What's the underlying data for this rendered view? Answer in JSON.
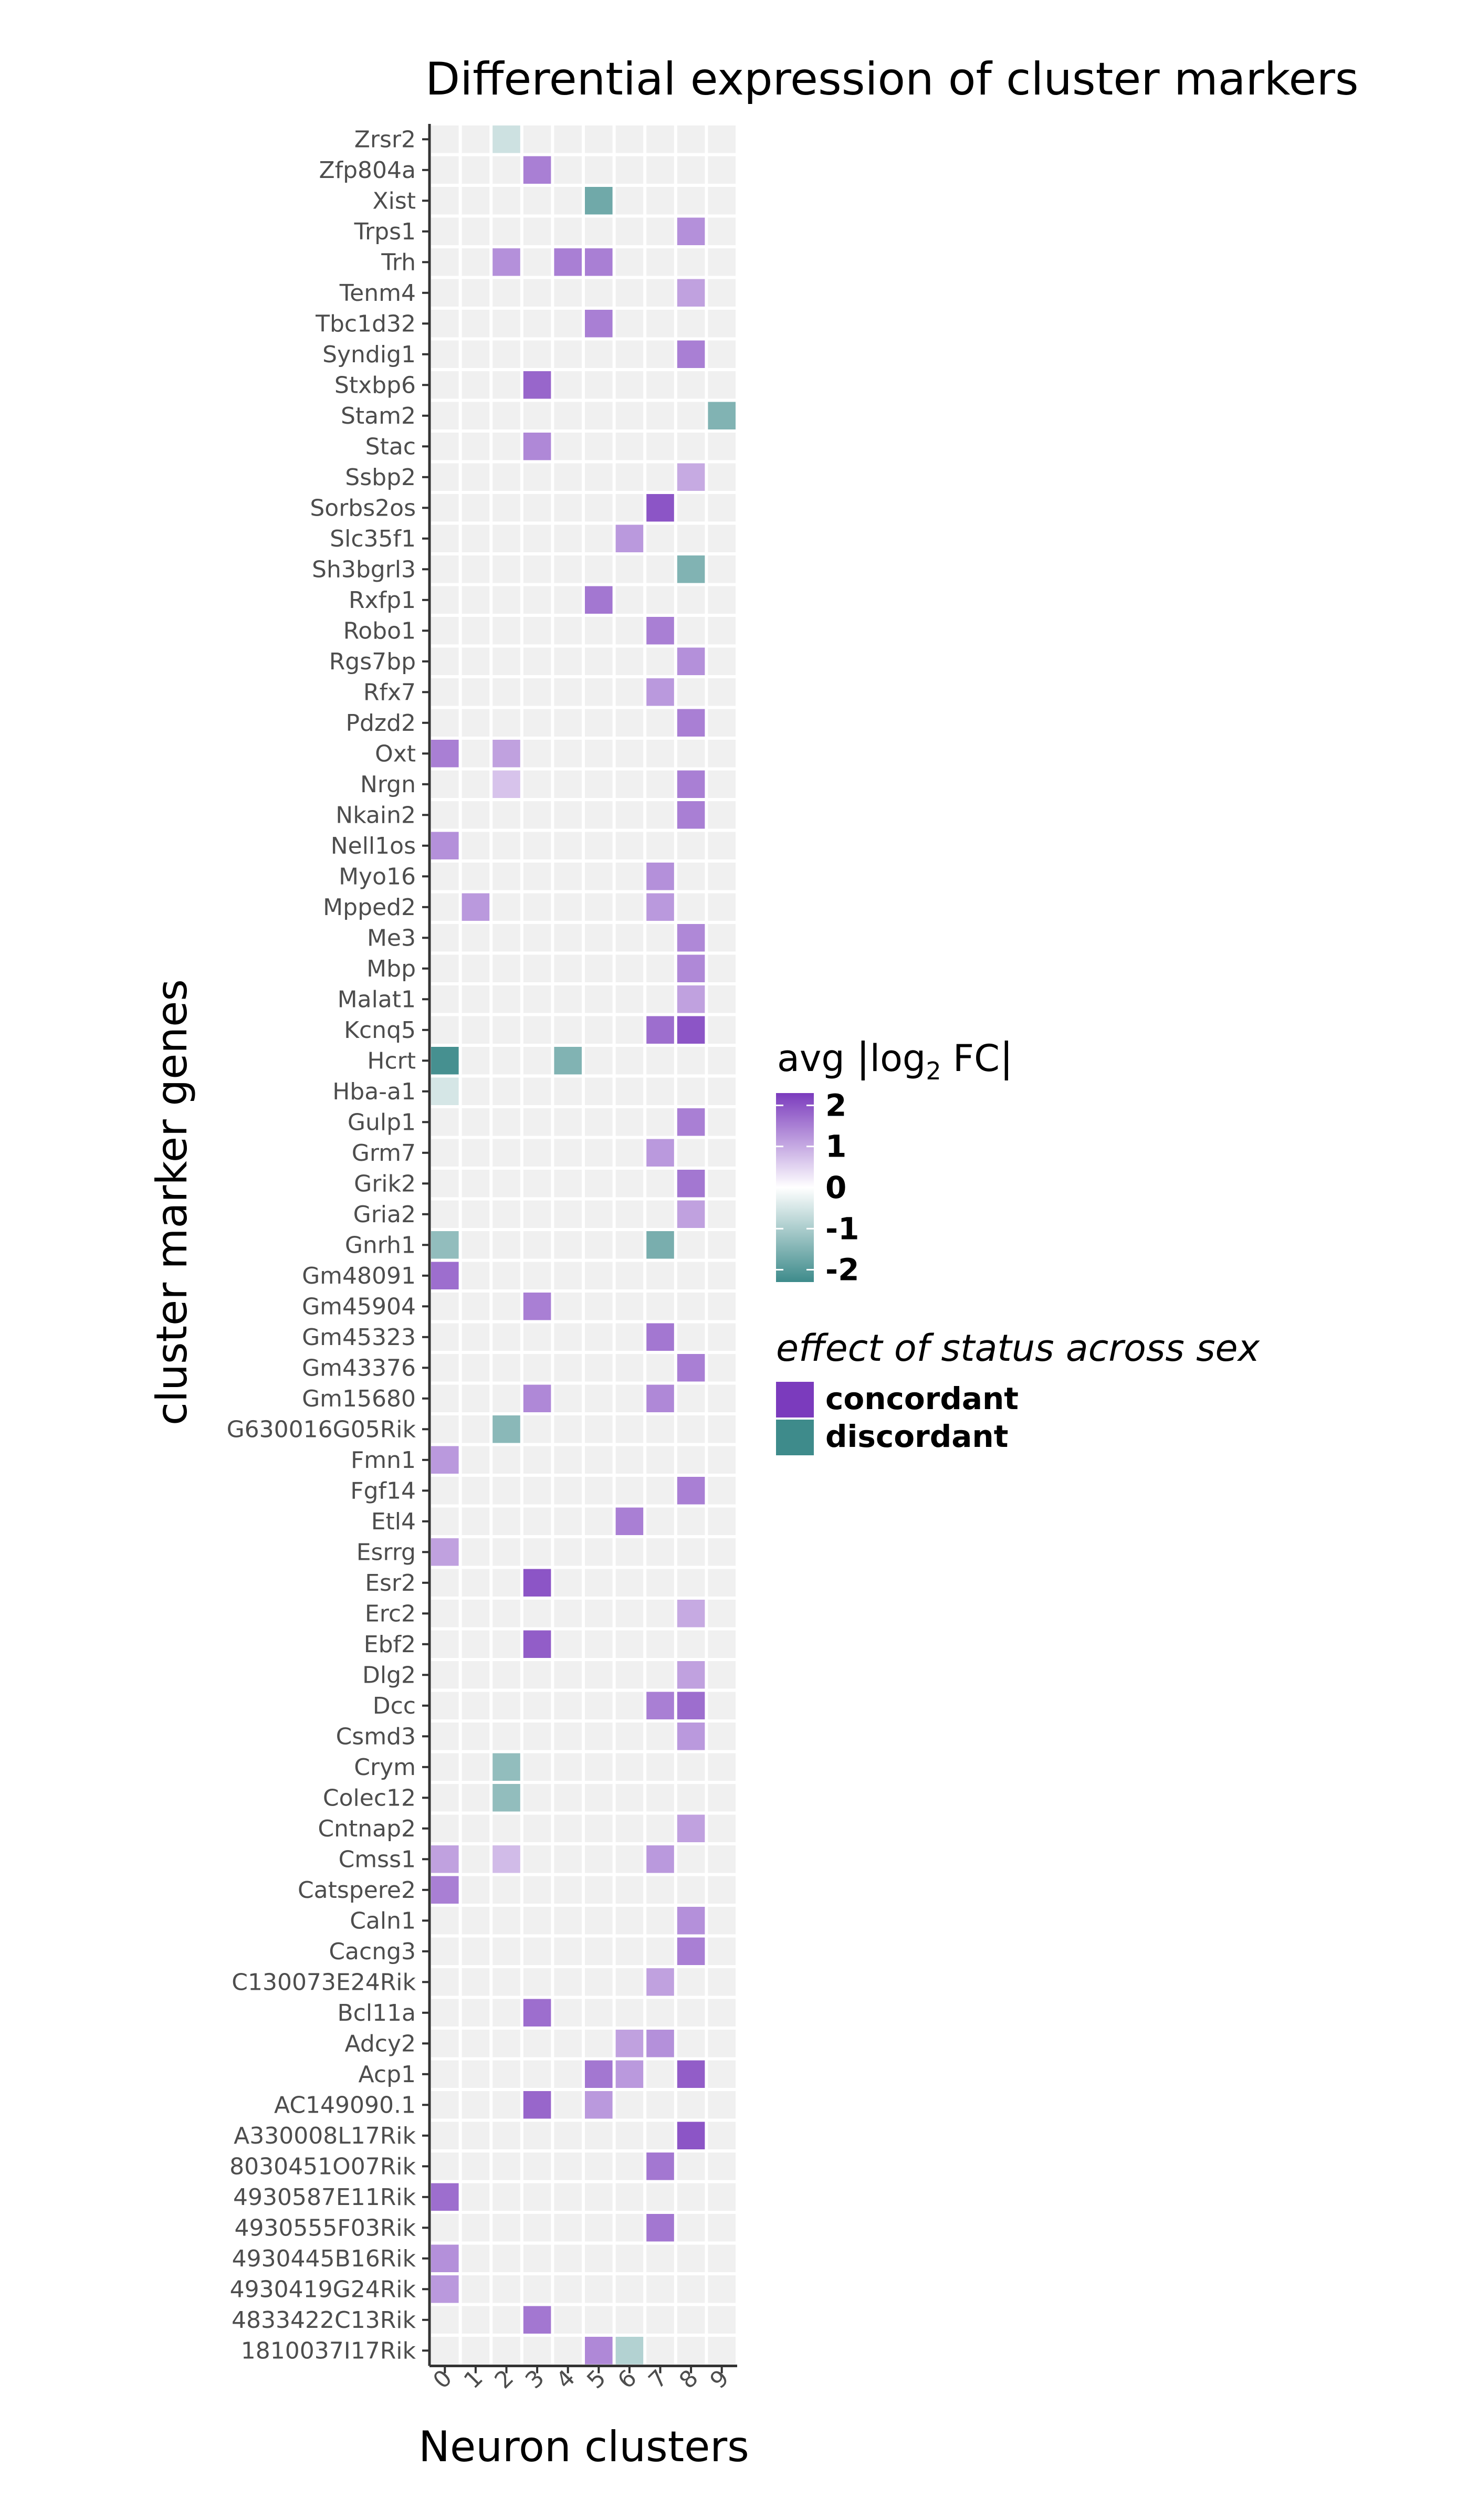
{
  "chart_data": {
    "type": "heatmap",
    "title": "Differential expression of cluster markers",
    "xlabel": "Neuron clusters",
    "ylabel": "cluster marker genes",
    "x_categories": [
      "0",
      "1",
      "2",
      "3",
      "4",
      "5",
      "6",
      "7",
      "8",
      "9"
    ],
    "genes": [
      "Zrsr2",
      "Zfp804a",
      "Xist",
      "Trps1",
      "Trh",
      "Tenm4",
      "Tbc1d32",
      "Syndig1",
      "Stxbp6",
      "Stam2",
      "Stac",
      "Ssbp2",
      "Sorbs2os",
      "Slc35f1",
      "Sh3bgrl3",
      "Rxfp1",
      "Robo1",
      "Rgs7bp",
      "Rfx7",
      "Pdzd2",
      "Oxt",
      "Nrgn",
      "Nkain2",
      "Nell1os",
      "Myo16",
      "Mpped2",
      "Me3",
      "Mbp",
      "Malat1",
      "Kcnq5",
      "Hcrt",
      "Hba-a1",
      "Gulp1",
      "Grm7",
      "Grik2",
      "Gria2",
      "Gnrh1",
      "Gm48091",
      "Gm45904",
      "Gm45323",
      "Gm43376",
      "Gm15680",
      "G630016G05Rik",
      "Fmn1",
      "Fgf14",
      "Etl4",
      "Esrrg",
      "Esr2",
      "Erc2",
      "Ebf2",
      "Dlg2",
      "Dcc",
      "Csmd3",
      "Crym",
      "Colec12",
      "Cntnap2",
      "Cmss1",
      "Catspere2",
      "Caln1",
      "Cacng3",
      "C130073E24Rik",
      "Bcl11a",
      "Adcy2",
      "Acp1",
      "AC149090.1",
      "A330008L17Rik",
      "8030451O07Rik",
      "4930587E11Rik",
      "4930555F03Rik",
      "4930445B16Rik",
      "4930419G24Rik",
      "4833422C13Rik",
      "1810037I17Rik"
    ],
    "cells": [
      {
        "gene": "Zrsr2",
        "cluster": "2",
        "value": -0.6
      },
      {
        "gene": "Zfp804a",
        "cluster": "3",
        "value": 1.5
      },
      {
        "gene": "Xist",
        "cluster": "5",
        "value": -1.7
      },
      {
        "gene": "Trps1",
        "cluster": "8",
        "value": 1.3
      },
      {
        "gene": "Trh",
        "cluster": "2",
        "value": 1.3
      },
      {
        "gene": "Trh",
        "cluster": "4",
        "value": 1.5
      },
      {
        "gene": "Trh",
        "cluster": "5",
        "value": 1.5
      },
      {
        "gene": "Tenm4",
        "cluster": "8",
        "value": 1.1
      },
      {
        "gene": "Tbc1d32",
        "cluster": "5",
        "value": 1.5
      },
      {
        "gene": "Syndig1",
        "cluster": "8",
        "value": 1.5
      },
      {
        "gene": "Stxbp6",
        "cluster": "3",
        "value": 1.8
      },
      {
        "gene": "Stam2",
        "cluster": "9",
        "value": -1.5
      },
      {
        "gene": "Stac",
        "cluster": "3",
        "value": 1.4
      },
      {
        "gene": "Ssbp2",
        "cluster": "8",
        "value": 1.0
      },
      {
        "gene": "Sorbs2os",
        "cluster": "7",
        "value": 2.0
      },
      {
        "gene": "Slc35f1",
        "cluster": "6",
        "value": 1.2
      },
      {
        "gene": "Sh3bgrl3",
        "cluster": "8",
        "value": -1.5
      },
      {
        "gene": "Rxfp1",
        "cluster": "5",
        "value": 1.6
      },
      {
        "gene": "Robo1",
        "cluster": "7",
        "value": 1.5
      },
      {
        "gene": "Rgs7bp",
        "cluster": "8",
        "value": 1.3
      },
      {
        "gene": "Rfx7",
        "cluster": "7",
        "value": 1.2
      },
      {
        "gene": "Pdzd2",
        "cluster": "8",
        "value": 1.5
      },
      {
        "gene": "Oxt",
        "cluster": "0",
        "value": 1.5
      },
      {
        "gene": "Oxt",
        "cluster": "2",
        "value": 1.1
      },
      {
        "gene": "Nrgn",
        "cluster": "2",
        "value": 0.7
      },
      {
        "gene": "Nrgn",
        "cluster": "8",
        "value": 1.5
      },
      {
        "gene": "Nkain2",
        "cluster": "8",
        "value": 1.5
      },
      {
        "gene": "Nell1os",
        "cluster": "0",
        "value": 1.3
      },
      {
        "gene": "Myo16",
        "cluster": "7",
        "value": 1.3
      },
      {
        "gene": "Mpped2",
        "cluster": "1",
        "value": 1.2
      },
      {
        "gene": "Mpped2",
        "cluster": "7",
        "value": 1.2
      },
      {
        "gene": "Me3",
        "cluster": "8",
        "value": 1.4
      },
      {
        "gene": "Mbp",
        "cluster": "8",
        "value": 1.4
      },
      {
        "gene": "Malat1",
        "cluster": "8",
        "value": 1.1
      },
      {
        "gene": "Kcnq5",
        "cluster": "7",
        "value": 1.7
      },
      {
        "gene": "Kcnq5",
        "cluster": "8",
        "value": 2.0
      },
      {
        "gene": "Hcrt",
        "cluster": "0",
        "value": -2.2
      },
      {
        "gene": "Hcrt",
        "cluster": "4",
        "value": -1.5
      },
      {
        "gene": "Hba-a1",
        "cluster": "0",
        "value": -0.5
      },
      {
        "gene": "Gulp1",
        "cluster": "8",
        "value": 1.5
      },
      {
        "gene": "Grm7",
        "cluster": "7",
        "value": 1.2
      },
      {
        "gene": "Grik2",
        "cluster": "8",
        "value": 1.6
      },
      {
        "gene": "Gria2",
        "cluster": "8",
        "value": 1.1
      },
      {
        "gene": "Gnrh1",
        "cluster": "0",
        "value": -1.3
      },
      {
        "gene": "Gnrh1",
        "cluster": "7",
        "value": -1.6
      },
      {
        "gene": "Gm48091",
        "cluster": "0",
        "value": 1.7
      },
      {
        "gene": "Gm45904",
        "cluster": "3",
        "value": 1.5
      },
      {
        "gene": "Gm45323",
        "cluster": "7",
        "value": 1.6
      },
      {
        "gene": "Gm43376",
        "cluster": "8",
        "value": 1.5
      },
      {
        "gene": "Gm15680",
        "cluster": "3",
        "value": 1.4
      },
      {
        "gene": "Gm15680",
        "cluster": "7",
        "value": 1.4
      },
      {
        "gene": "G630016G05Rik",
        "cluster": "2",
        "value": -1.4
      },
      {
        "gene": "Fmn1",
        "cluster": "0",
        "value": 1.2
      },
      {
        "gene": "Fgf14",
        "cluster": "8",
        "value": 1.5
      },
      {
        "gene": "Etl4",
        "cluster": "6",
        "value": 1.5
      },
      {
        "gene": "Esrrg",
        "cluster": "0",
        "value": 1.1
      },
      {
        "gene": "Esr2",
        "cluster": "3",
        "value": 2.0
      },
      {
        "gene": "Erc2",
        "cluster": "8",
        "value": 1.0
      },
      {
        "gene": "Ebf2",
        "cluster": "3",
        "value": 1.9
      },
      {
        "gene": "Dlg2",
        "cluster": "8",
        "value": 1.1
      },
      {
        "gene": "Dcc",
        "cluster": "7",
        "value": 1.5
      },
      {
        "gene": "Dcc",
        "cluster": "8",
        "value": 1.7
      },
      {
        "gene": "Csmd3",
        "cluster": "8",
        "value": 1.2
      },
      {
        "gene": "Crym",
        "cluster": "2",
        "value": -1.3
      },
      {
        "gene": "Colec12",
        "cluster": "2",
        "value": -1.3
      },
      {
        "gene": "Cntnap2",
        "cluster": "8",
        "value": 1.1
      },
      {
        "gene": "Cmss1",
        "cluster": "0",
        "value": 1.1
      },
      {
        "gene": "Cmss1",
        "cluster": "2",
        "value": 0.8
      },
      {
        "gene": "Cmss1",
        "cluster": "7",
        "value": 1.2
      },
      {
        "gene": "Catspere2",
        "cluster": "0",
        "value": 1.5
      },
      {
        "gene": "Caln1",
        "cluster": "8",
        "value": 1.3
      },
      {
        "gene": "Cacng3",
        "cluster": "8",
        "value": 1.5
      },
      {
        "gene": "C130073E24Rik",
        "cluster": "7",
        "value": 1.1
      },
      {
        "gene": "Bcl11a",
        "cluster": "3",
        "value": 1.7
      },
      {
        "gene": "Adcy2",
        "cluster": "6",
        "value": 1.1
      },
      {
        "gene": "Adcy2",
        "cluster": "7",
        "value": 1.3
      },
      {
        "gene": "Acp1",
        "cluster": "5",
        "value": 1.6
      },
      {
        "gene": "Acp1",
        "cluster": "6",
        "value": 1.2
      },
      {
        "gene": "Acp1",
        "cluster": "8",
        "value": 1.9
      },
      {
        "gene": "AC149090.1",
        "cluster": "3",
        "value": 1.8
      },
      {
        "gene": "AC149090.1",
        "cluster": "5",
        "value": 1.2
      },
      {
        "gene": "A330008L17Rik",
        "cluster": "8",
        "value": 2.0
      },
      {
        "gene": "8030451O07Rik",
        "cluster": "7",
        "value": 1.6
      },
      {
        "gene": "4930587E11Rik",
        "cluster": "0",
        "value": 1.7
      },
      {
        "gene": "4930555F03Rik",
        "cluster": "7",
        "value": 1.6
      },
      {
        "gene": "4930445B16Rik",
        "cluster": "0",
        "value": 1.3
      },
      {
        "gene": "4930419G24Rik",
        "cluster": "0",
        "value": 1.2
      },
      {
        "gene": "4833422C13Rik",
        "cluster": "3",
        "value": 1.6
      },
      {
        "gene": "1810037I17Rik",
        "cluster": "5",
        "value": 1.4
      },
      {
        "gene": "1810037I17Rik",
        "cluster": "6",
        "value": -0.9
      }
    ],
    "color_scale": {
      "title_prefix": "avg ",
      "title_log": "log",
      "title_sub": "2",
      "title_suffix": " FC",
      "min": -2.3,
      "max": 2.3,
      "ticks": [
        2,
        1,
        0,
        -1,
        -2
      ],
      "tick_labels": [
        "2",
        "1",
        "0",
        "-1",
        "-2"
      ]
    },
    "legend": {
      "title": "effect of status across sex",
      "placement": "right",
      "items": [
        {
          "label": "concordant",
          "color": "#7b3bbd"
        },
        {
          "label": "discordant",
          "color": "#3e8b8b"
        }
      ]
    },
    "colors": {
      "empty_cell": "#f0f0f0",
      "high": "#7b3bbd",
      "mid": "#ffffff",
      "low": "#3e8b8b"
    },
    "grid": true
  }
}
